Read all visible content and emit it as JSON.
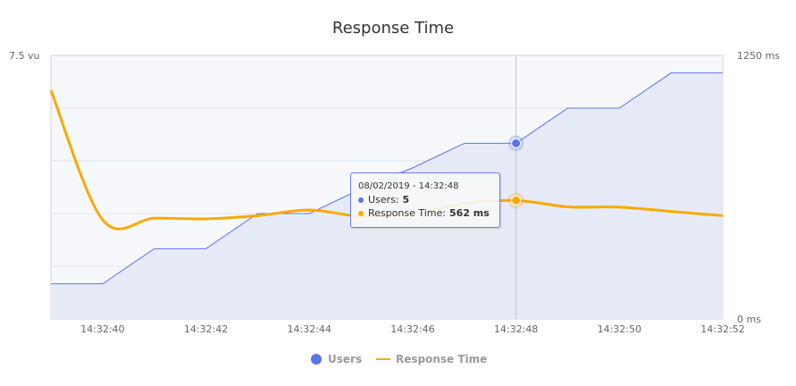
{
  "chart_data": {
    "type": "line",
    "title": "Response Time",
    "x": [
      "14:32:39",
      "14:32:40",
      "14:32:41",
      "14:32:42",
      "14:32:43",
      "14:32:44",
      "14:32:45",
      "14:32:46",
      "14:32:47",
      "14:32:48",
      "14:32:49",
      "14:32:50",
      "14:32:51",
      "14:32:52"
    ],
    "x_tick_labels": [
      "14:32:40",
      "14:32:42",
      "14:32:44",
      "14:32:46",
      "14:32:48",
      "14:32:50",
      "14:32:52"
    ],
    "series": [
      {
        "name": "Users",
        "axis": "left",
        "unit": "vu",
        "color": "#5b74e8",
        "fill": "#e6ebf7",
        "style": "area-linear",
        "values": [
          1,
          1,
          2,
          2,
          3,
          3,
          3.7,
          4.3,
          5,
          5,
          6,
          6,
          7,
          7
        ]
      },
      {
        "name": "Response Time",
        "axis": "right",
        "unit": "ms",
        "color": "#f9a900",
        "style": "spline",
        "values": [
          1085,
          470,
          478,
          475,
          490,
          517,
          487,
          500,
          547,
          562,
          532,
          530,
          510,
          490
        ]
      }
    ],
    "left_axis": {
      "label_max": "7.5 vu",
      "ylim": [
        0,
        7.5
      ]
    },
    "right_axis": {
      "label_max": "1250 ms",
      "label_min": "0 ms",
      "ylim": [
        0,
        1250
      ]
    },
    "grid": true,
    "legend": {
      "position": "bottom",
      "items": [
        "Users",
        "Response Time"
      ]
    },
    "crosshair_x": "14:32:48"
  },
  "tooltip": {
    "timestamp": "08/02/2019 - 14:32:48",
    "users_label": "Users:",
    "users_value": "5",
    "response_label": "Response Time:",
    "response_value": "562 ms"
  }
}
